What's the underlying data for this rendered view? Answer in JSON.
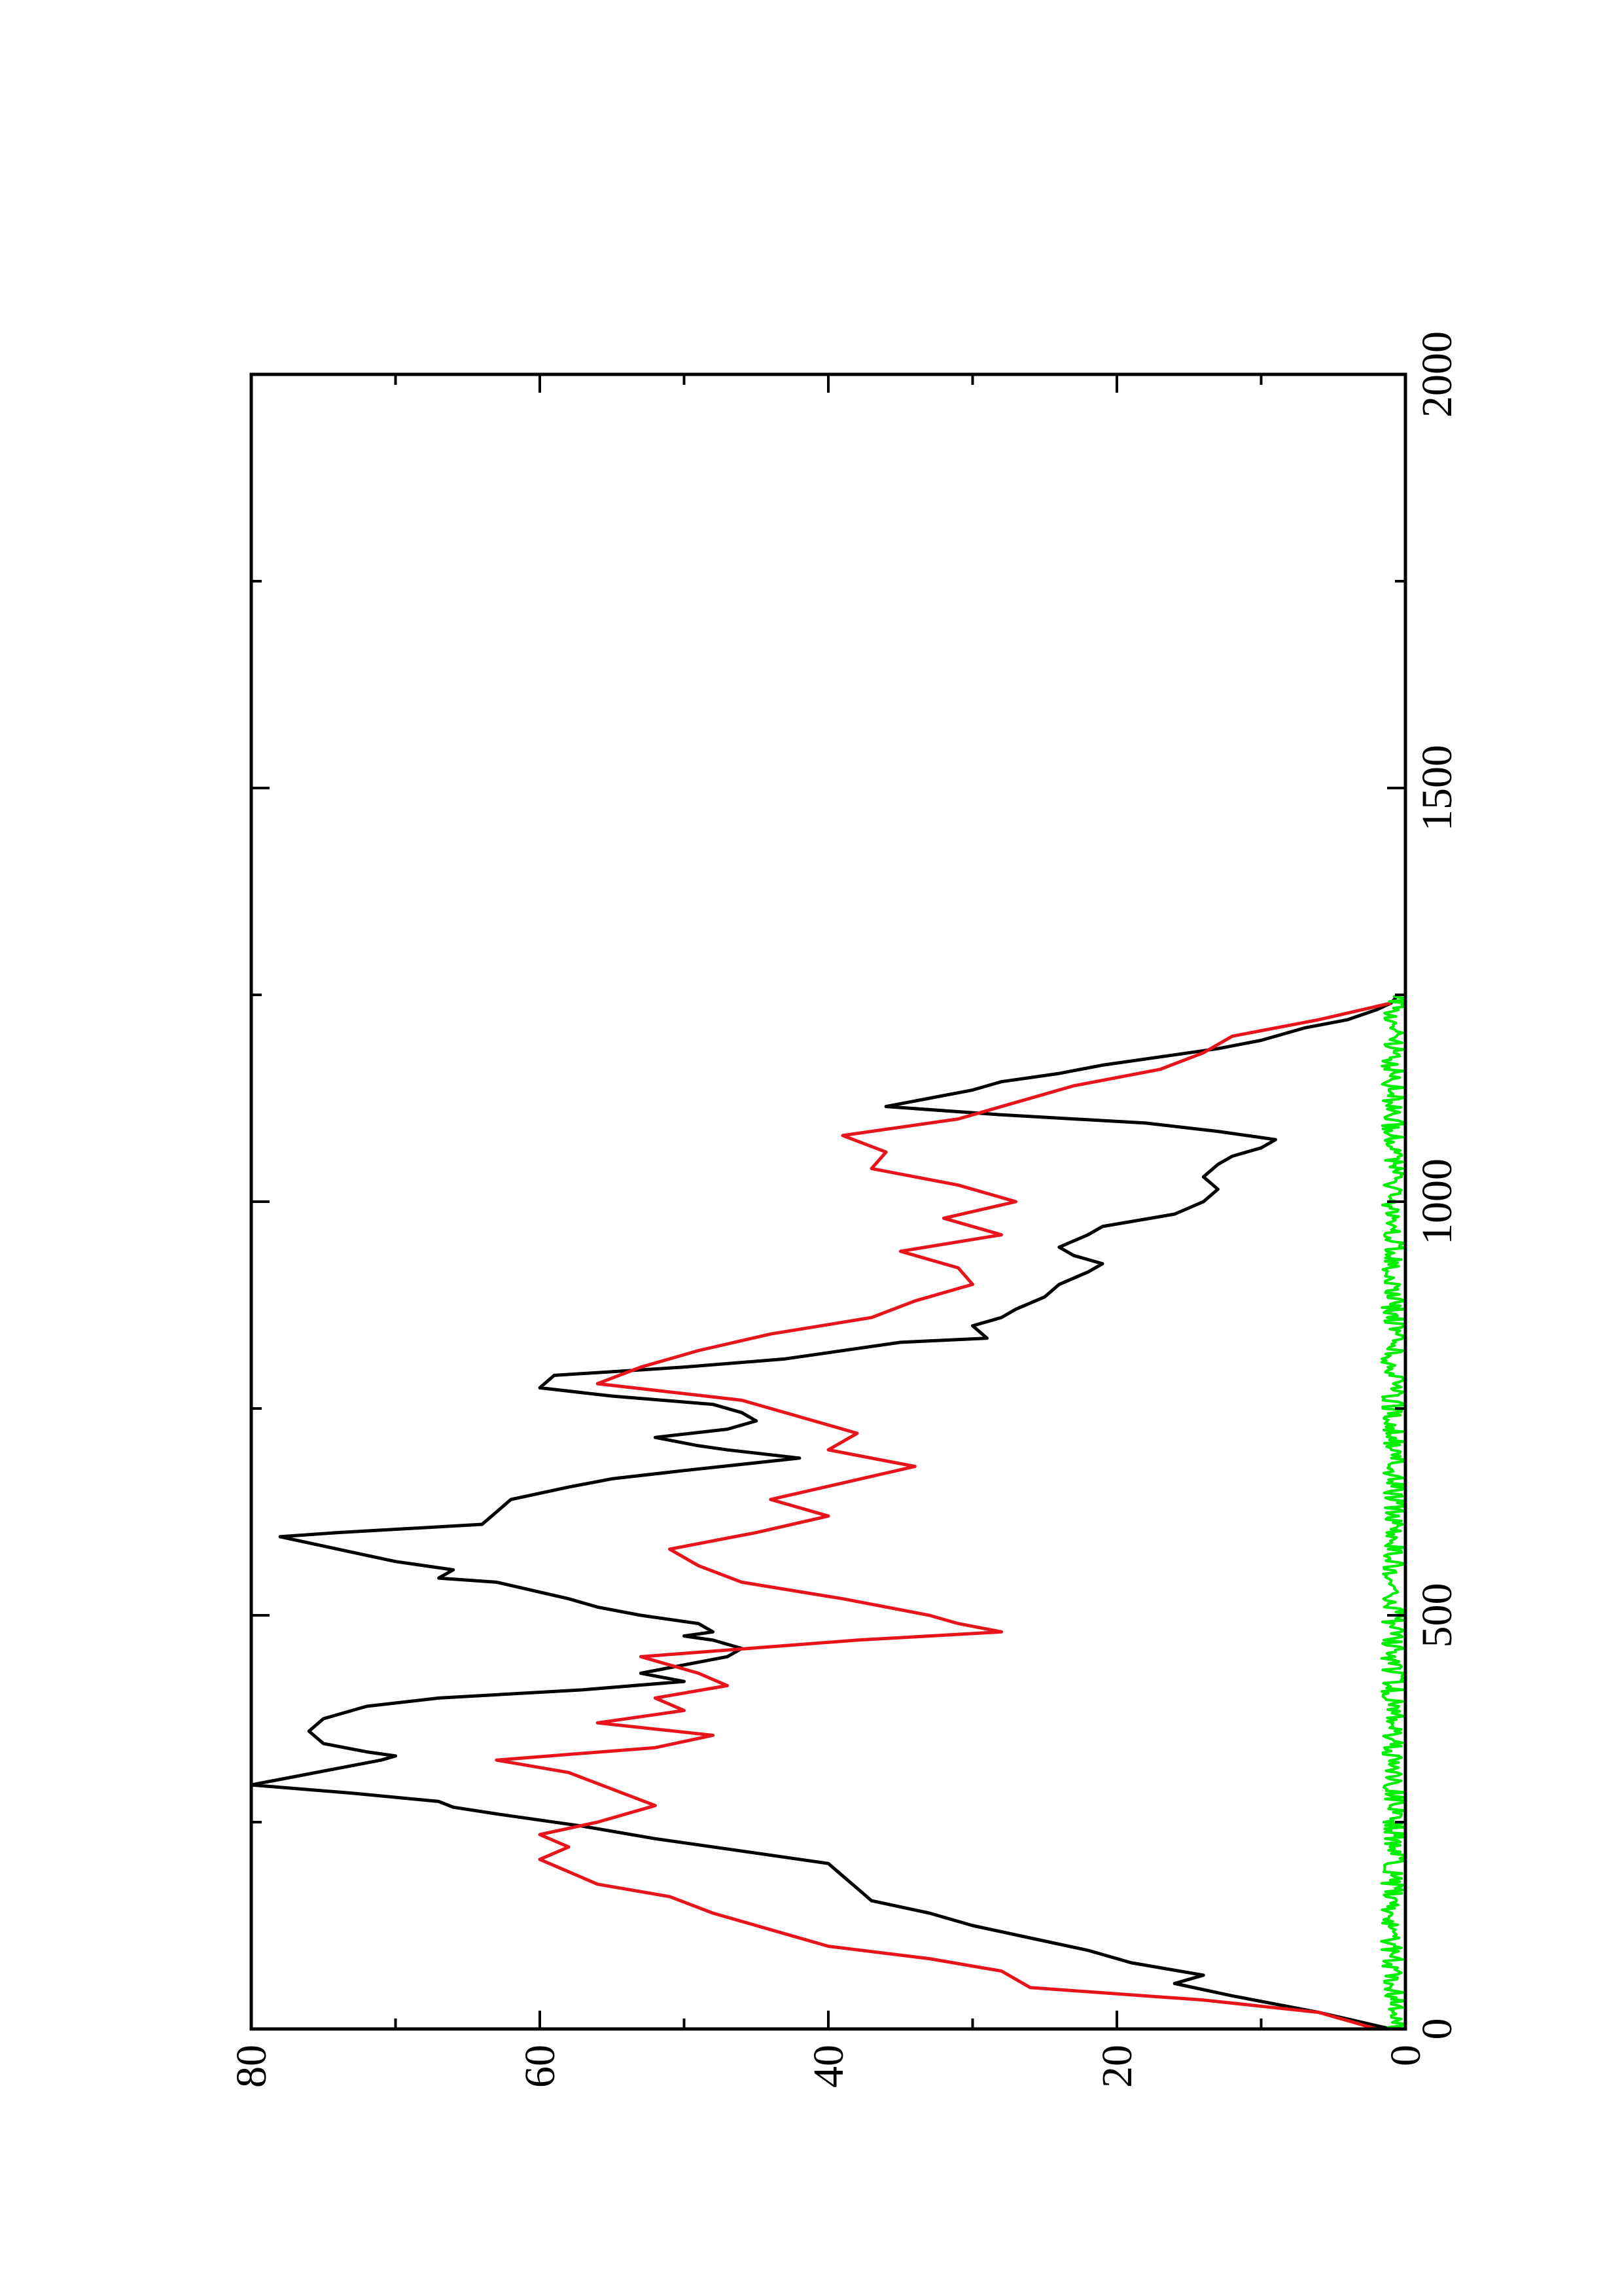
{
  "chart_data": {
    "type": "line",
    "title": "",
    "xlabel": "",
    "ylabel": "",
    "xlim": [
      0,
      2000
    ],
    "ylim": [
      0,
      80
    ],
    "x_ticks": [
      0,
      500,
      1000,
      1500,
      2000
    ],
    "y_ticks": [
      0,
      20,
      40,
      60,
      80
    ],
    "x_tick_labels": [
      "0",
      "500",
      "1000",
      "1500",
      "2000"
    ],
    "y_tick_labels": [
      "0",
      "20",
      "40",
      "60",
      "80"
    ],
    "orientation": "rotated 90 degrees counter-clockwise",
    "legend": "none",
    "grid": false,
    "series": [
      {
        "color": "#000000",
        "style": "solid",
        "x": [
          0,
          20,
          40,
          55,
          65,
          80,
          95,
          110,
          125,
          140,
          155,
          170,
          185,
          200,
          215,
          230,
          245,
          260,
          268,
          275,
          285,
          295,
          305,
          315,
          325,
          330,
          335,
          345,
          360,
          375,
          390,
          400,
          410,
          420,
          430,
          440,
          450,
          460,
          470,
          475,
          480,
          490,
          500,
          510,
          520,
          540,
          545,
          555,
          565,
          580,
          595,
          600,
          610,
          625,
          640,
          655,
          665,
          675,
          690,
          700,
          705,
          715,
          725,
          735,
          745,
          755,
          765,
          775,
          790,
          800,
          810,
          830,
          835,
          850,
          860,
          870,
          885,
          900,
          915,
          925,
          935,
          945,
          960,
          970,
          985,
          1000,
          1015,
          1030,
          1045,
          1055,
          1065,
          1075,
          1085,
          1095,
          1105,
          1115,
          1125,
          1135,
          1145,
          1155,
          1165,
          1175,
          1185,
          1195,
          1210,
          1220,
          1232,
          1240,
          1250
        ],
        "y": [
          1,
          6,
          12,
          16,
          14,
          19,
          22,
          26,
          30,
          33,
          37,
          38,
          39,
          40,
          46,
          52,
          57,
          63,
          66,
          67,
          73,
          80,
          77,
          74,
          71,
          70,
          72,
          75,
          76,
          75,
          72,
          67,
          57,
          50,
          53,
          50,
          47,
          46,
          48,
          50,
          48,
          49,
          53,
          56,
          58,
          63,
          67,
          66,
          70,
          74,
          78,
          74,
          64,
          63,
          62,
          58,
          55,
          50,
          42,
          47,
          49,
          52,
          47,
          45,
          46,
          48,
          55,
          60,
          59,
          50,
          43,
          35,
          29,
          30,
          28,
          27,
          25,
          24,
          22,
          21,
          23,
          24,
          22,
          21,
          16,
          14,
          13,
          14,
          13,
          12,
          10,
          9,
          13,
          18,
          28,
          36,
          33,
          30,
          28,
          24,
          21,
          17,
          13,
          10,
          7,
          4,
          2,
          1,
          0.5
        ]
      },
      {
        "color": "#e8141c",
        "style": "solid",
        "x": [
          0,
          20,
          35,
          50,
          70,
          85,
          100,
          120,
          140,
          160,
          175,
          190,
          205,
          220,
          235,
          250,
          270,
          290,
          310,
          325,
          340,
          355,
          370,
          385,
          400,
          415,
          430,
          450,
          470,
          480,
          490,
          500,
          520,
          540,
          560,
          580,
          600,
          620,
          640,
          660,
          680,
          700,
          720,
          740,
          760,
          780,
          800,
          820,
          840,
          860,
          880,
          900,
          920,
          940,
          960,
          980,
          1000,
          1020,
          1040,
          1060,
          1080,
          1100,
          1120,
          1140,
          1160,
          1180,
          1200,
          1220,
          1240
        ],
        "y": [
          2,
          6,
          14,
          26,
          28,
          33,
          40,
          44,
          48,
          51,
          56,
          58,
          60,
          58,
          60,
          56,
          52,
          55,
          58,
          63,
          52,
          48,
          56,
          50,
          52,
          47,
          49,
          53,
          38,
          28,
          31,
          33,
          39,
          46,
          49,
          51,
          45,
          40,
          44,
          39,
          34,
          40,
          38,
          42,
          46,
          56,
          53,
          49,
          44,
          37,
          34,
          30,
          31,
          35,
          28,
          32,
          27,
          31,
          37,
          36,
          39,
          31,
          27,
          23,
          17,
          14,
          12,
          6,
          1
        ]
      },
      {
        "color": "#00ee00",
        "style": "noise",
        "x": [
          0,
          100,
          200,
          300,
          400,
          500,
          600,
          700,
          800,
          900,
          1000,
          1100,
          1200,
          1250
        ],
        "y": [
          0.5,
          1.0,
          0.8,
          0.7,
          0.9,
          0.8,
          0.7,
          0.8,
          0.9,
          0.8,
          0.9,
          0.8,
          0.9,
          0.5
        ]
      }
    ]
  }
}
